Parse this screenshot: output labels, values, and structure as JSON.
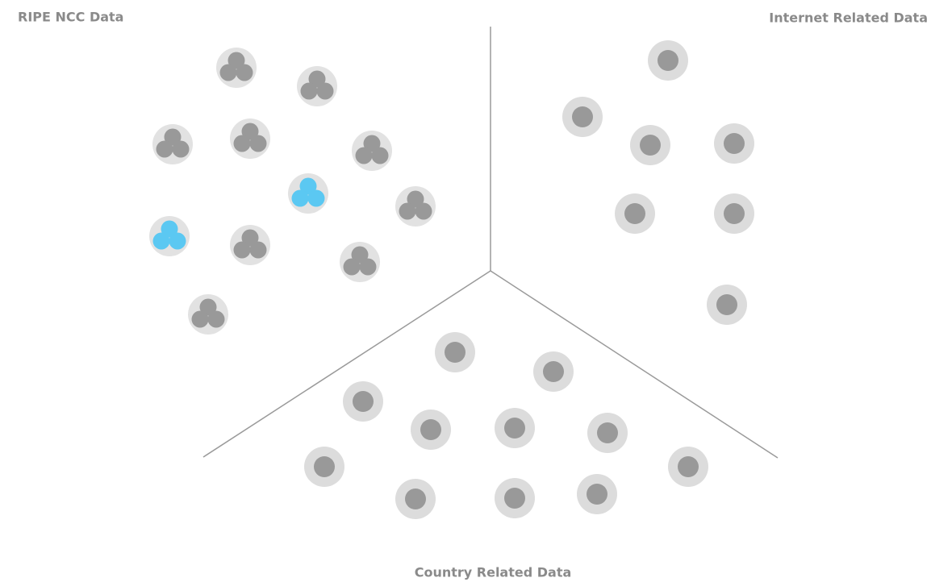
{
  "sections": [
    {
      "label": "RIPE NCC Data"
    },
    {
      "label": "Internet Related Data"
    },
    {
      "label": "Country Related Data"
    }
  ]
}
